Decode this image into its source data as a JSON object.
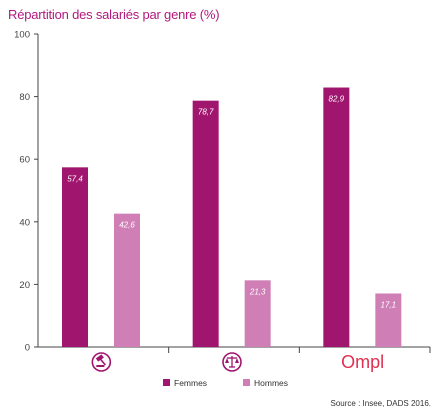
{
  "chart_data": {
    "type": "bar",
    "title": "Répartition des salariés par genre (%)",
    "categories": [
      "",
      "",
      "Ompl"
    ],
    "category_icons": [
      "gavel-icon",
      "scales-icon",
      "ompl-logo"
    ],
    "series": [
      {
        "name": "Femmes",
        "values": [
          57.4,
          78.7,
          82.9
        ],
        "labels": [
          "57,4",
          "78,7",
          "82,9"
        ],
        "color": "#a0156e"
      },
      {
        "name": "Hommes",
        "values": [
          42.6,
          21.3,
          17.1
        ],
        "labels": [
          "42,6",
          "21,3",
          "17,1"
        ],
        "color": "#cf7fb6"
      }
    ],
    "ylim": [
      0,
      100
    ],
    "yticks": [
      0,
      20,
      40,
      60,
      80,
      100
    ],
    "grid": false,
    "legend": "bottom",
    "xlabel": "",
    "ylabel": "",
    "source": "Source : Insee, DADS 2016.",
    "colors": {
      "title": "#b0197e",
      "axis": "#444444",
      "separator": "#bbbbbb",
      "icon": "#a0156e"
    }
  }
}
